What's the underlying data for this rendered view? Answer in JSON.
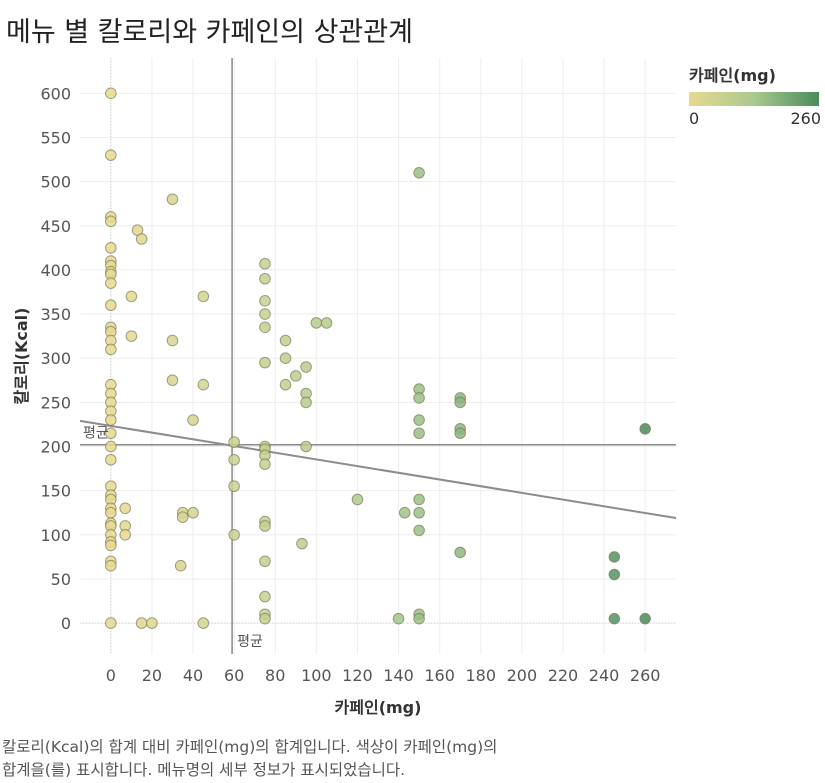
{
  "title": "메뉴 별 칼로리와 카페인의 상관관계",
  "legend": {
    "title": "카페인(mg)",
    "min_label": "0",
    "max_label": "260",
    "color_low": "#e8d98f",
    "color_mid": "#a9c98e",
    "color_high": "#4a8b5c"
  },
  "caption": {
    "line1": "칼로리(Kcal)의 합계 대비 카페인(mg)의 합계입니다. 색상이 카페인(mg)의",
    "line2": "합계을(를) 표시합니다. 메뉴명의 세부 정보가 표시되었습니다."
  },
  "chart_data": {
    "type": "scatter",
    "title": "메뉴 별 칼로리와 카페인의 상관관계",
    "xlabel": "카페인(mg)",
    "ylabel": "칼로리(Kcal)",
    "xlim": [
      -15,
      275
    ],
    "ylim": [
      -35,
      640
    ],
    "x_ticks": [
      0,
      20,
      40,
      60,
      80,
      100,
      120,
      140,
      160,
      180,
      200,
      220,
      240,
      260
    ],
    "y_ticks": [
      0,
      50,
      100,
      150,
      200,
      250,
      300,
      350,
      400,
      450,
      500,
      550,
      600
    ],
    "grid": true,
    "reference_lines": {
      "x_average": 59,
      "y_average": 202,
      "label": "평균"
    },
    "trend_line": {
      "x_start": -15,
      "y_start": 229,
      "x_end": 275,
      "y_end": 119
    },
    "color_scale": {
      "field": "카페인(mg)",
      "min": 0,
      "max": 260
    },
    "points": [
      [
        0,
        600
      ],
      [
        0,
        530
      ],
      [
        0,
        460
      ],
      [
        0,
        455
      ],
      [
        0,
        425
      ],
      [
        0,
        410
      ],
      [
        0,
        405
      ],
      [
        0,
        398
      ],
      [
        0,
        395
      ],
      [
        0,
        385
      ],
      [
        0,
        360
      ],
      [
        0,
        335
      ],
      [
        0,
        330
      ],
      [
        0,
        320
      ],
      [
        0,
        310
      ],
      [
        0,
        270
      ],
      [
        0,
        260
      ],
      [
        0,
        250
      ],
      [
        0,
        240
      ],
      [
        0,
        230
      ],
      [
        0,
        215
      ],
      [
        0,
        200
      ],
      [
        0,
        185
      ],
      [
        0,
        155
      ],
      [
        0,
        145
      ],
      [
        0,
        140
      ],
      [
        0,
        130
      ],
      [
        0,
        125
      ],
      [
        0,
        113
      ],
      [
        0,
        110
      ],
      [
        0,
        100
      ],
      [
        0,
        92
      ],
      [
        0,
        88
      ],
      [
        0,
        70
      ],
      [
        0,
        65
      ],
      [
        0,
        0
      ],
      [
        7,
        130
      ],
      [
        7,
        110
      ],
      [
        7,
        100
      ],
      [
        10,
        370
      ],
      [
        10,
        325
      ],
      [
        13,
        445
      ],
      [
        15,
        435
      ],
      [
        15,
        0
      ],
      [
        20,
        0
      ],
      [
        30,
        480
      ],
      [
        30,
        320
      ],
      [
        30,
        275
      ],
      [
        34,
        65
      ],
      [
        35,
        125
      ],
      [
        35,
        120
      ],
      [
        40,
        230
      ],
      [
        40,
        125
      ],
      [
        45,
        370
      ],
      [
        45,
        270
      ],
      [
        45,
        0
      ],
      [
        60,
        205
      ],
      [
        60,
        185
      ],
      [
        60,
        155
      ],
      [
        60,
        100
      ],
      [
        75,
        407
      ],
      [
        75,
        390
      ],
      [
        75,
        365
      ],
      [
        75,
        350
      ],
      [
        75,
        335
      ],
      [
        75,
        295
      ],
      [
        75,
        200
      ],
      [
        75,
        197
      ],
      [
        75,
        190
      ],
      [
        75,
        180
      ],
      [
        75,
        115
      ],
      [
        75,
        110
      ],
      [
        75,
        70
      ],
      [
        75,
        30
      ],
      [
        75,
        10
      ],
      [
        75,
        5
      ],
      [
        85,
        320
      ],
      [
        85,
        300
      ],
      [
        85,
        270
      ],
      [
        90,
        280
      ],
      [
        93,
        90
      ],
      [
        95,
        290
      ],
      [
        95,
        260
      ],
      [
        95,
        250
      ],
      [
        95,
        200
      ],
      [
        100,
        340
      ],
      [
        105,
        340
      ],
      [
        120,
        140
      ],
      [
        140,
        5
      ],
      [
        143,
        125
      ],
      [
        150,
        510
      ],
      [
        150,
        265
      ],
      [
        150,
        255
      ],
      [
        150,
        230
      ],
      [
        150,
        215
      ],
      [
        150,
        140
      ],
      [
        150,
        125
      ],
      [
        150,
        105
      ],
      [
        150,
        10
      ],
      [
        150,
        5
      ],
      [
        170,
        255
      ],
      [
        170,
        250
      ],
      [
        170,
        220
      ],
      [
        170,
        215
      ],
      [
        170,
        80
      ],
      [
        245,
        75
      ],
      [
        245,
        55
      ],
      [
        245,
        5
      ],
      [
        260,
        220
      ],
      [
        260,
        5
      ]
    ]
  }
}
